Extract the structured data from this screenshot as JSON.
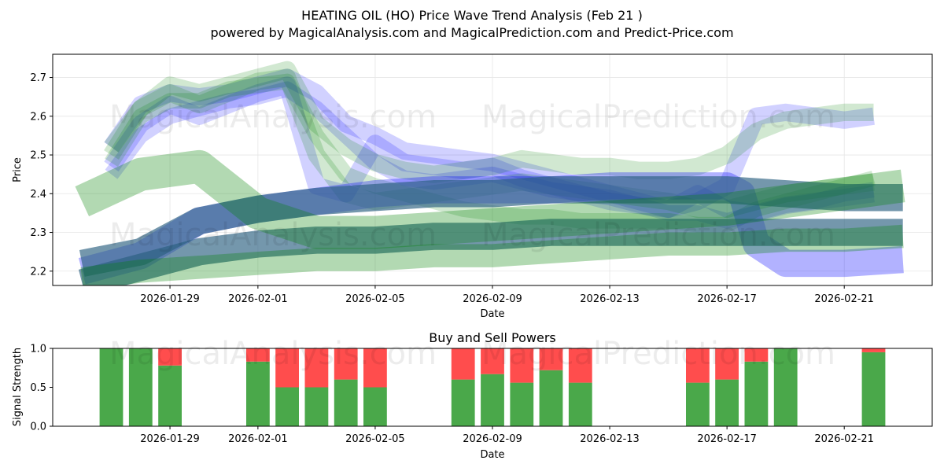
{
  "title_line1": "HEATING OIL (HO) Price Wave Trend Analysis (Feb 21 )",
  "title_line2": "powered by MagicalAnalysis.com and MagicalPrediction.com and Predict-Price.com",
  "watermarks": [
    "MagicalAnalysis.com",
    "MagicalPrediction.com"
  ],
  "chart_data": [
    {
      "type": "line",
      "title": "",
      "xlabel": "Date",
      "ylabel": "Price",
      "x_tick_labels": [
        "2026-01-29",
        "2026-02-01",
        "2026-02-05",
        "2026-02-09",
        "2026-02-13",
        "2026-02-17",
        "2026-02-21"
      ],
      "x_tick_days": [
        3,
        6,
        10,
        14,
        18,
        22,
        26
      ],
      "x_range_days": [
        -1.0,
        29.0
      ],
      "y_ticks": [
        "2.2",
        "2.3",
        "2.4",
        "2.5",
        "2.6",
        "2.7"
      ],
      "ylim": [
        2.163,
        2.76
      ],
      "grid": true,
      "x_dates_note": "day index 0 = 2026-01-26",
      "series": [
        {
          "name": "blue-wave-1",
          "color": "#0000ff",
          "width": 0.045,
          "opacity": 0.18,
          "x": [
            1,
            2,
            3,
            4,
            5,
            6,
            7,
            8,
            9,
            10,
            11,
            12,
            13,
            14,
            15,
            16,
            17,
            18,
            19,
            20,
            21,
            22,
            23,
            24,
            25,
            26,
            27
          ],
          "y": [
            2.52,
            2.63,
            2.66,
            2.65,
            2.66,
            2.68,
            2.7,
            2.66,
            2.58,
            2.55,
            2.51,
            2.5,
            2.49,
            2.48,
            2.46,
            2.44,
            2.42,
            2.4,
            2.38,
            2.36,
            2.38,
            2.42,
            2.6,
            2.61,
            2.6,
            2.59,
            2.6
          ]
        },
        {
          "name": "blue-wave-2",
          "color": "#0000ff",
          "width": 0.045,
          "opacity": 0.18,
          "x": [
            1,
            2,
            3,
            4,
            5,
            6,
            7,
            8,
            9,
            10,
            11,
            12,
            13,
            14,
            15,
            16,
            17,
            18,
            19,
            20,
            21,
            22,
            23,
            24,
            25,
            26,
            27
          ],
          "y": [
            2.47,
            2.58,
            2.63,
            2.6,
            2.63,
            2.66,
            2.68,
            2.42,
            2.4,
            2.53,
            2.48,
            2.47,
            2.46,
            2.47,
            2.44,
            2.42,
            2.4,
            2.38,
            2.37,
            2.36,
            2.4,
            2.36,
            2.35,
            2.37,
            2.38,
            2.39,
            2.4
          ]
        },
        {
          "name": "blue-wave-3",
          "color": "#0000ff",
          "width": 0.04,
          "opacity": 0.18,
          "x": [
            1,
            2,
            3,
            4,
            5,
            6,
            7,
            8,
            9,
            10,
            11,
            12,
            13,
            14,
            15,
            16,
            17,
            18,
            19,
            20,
            21,
            22,
            23,
            24,
            25,
            26,
            27
          ],
          "y": [
            2.45,
            2.55,
            2.6,
            2.62,
            2.64,
            2.65,
            2.67,
            2.62,
            2.55,
            2.48,
            2.44,
            2.43,
            2.44,
            2.45,
            2.43,
            2.41,
            2.4,
            2.39,
            2.37,
            2.35,
            2.35,
            2.33,
            2.35,
            2.37,
            2.38,
            2.4,
            2.41
          ]
        },
        {
          "name": "green-wave-1",
          "color": "#008000",
          "width": 0.045,
          "opacity": 0.18,
          "x": [
            1,
            2,
            3,
            4,
            5,
            6,
            7,
            8,
            9,
            10,
            11,
            12,
            13,
            14,
            15,
            16,
            17,
            18,
            19,
            20,
            21,
            22,
            23,
            24,
            25,
            26,
            27
          ],
          "y": [
            2.52,
            2.62,
            2.68,
            2.66,
            2.68,
            2.7,
            2.72,
            2.58,
            2.52,
            2.48,
            2.46,
            2.45,
            2.46,
            2.47,
            2.49,
            2.48,
            2.47,
            2.47,
            2.46,
            2.46,
            2.47,
            2.5,
            2.56,
            2.59,
            2.6,
            2.61,
            2.61
          ]
        },
        {
          "name": "green-wave-2",
          "color": "#008000",
          "width": 0.045,
          "opacity": 0.18,
          "x": [
            1,
            2,
            3,
            4,
            5,
            6,
            7,
            8,
            9,
            10,
            11,
            12,
            13,
            14,
            15,
            16,
            17,
            18,
            19,
            20,
            21,
            22,
            23,
            24,
            25,
            26,
            27
          ],
          "y": [
            2.5,
            2.62,
            2.66,
            2.63,
            2.66,
            2.69,
            2.7,
            2.5,
            2.4,
            2.38,
            2.39,
            2.4,
            2.41,
            2.42,
            2.43,
            2.42,
            2.41,
            2.4,
            2.39,
            2.38,
            2.36,
            2.36,
            2.38,
            2.4,
            2.41,
            2.42,
            2.43
          ]
        },
        {
          "name": "green-wave-3",
          "color": "#008000",
          "width": 0.04,
          "opacity": 0.18,
          "x": [
            1,
            2,
            3,
            4,
            5,
            6,
            7,
            8,
            9,
            10,
            11,
            12,
            13,
            14,
            15,
            16,
            17,
            18,
            19,
            20,
            21,
            22,
            23,
            24,
            25,
            26,
            27
          ],
          "y": [
            2.48,
            2.6,
            2.64,
            2.64,
            2.67,
            2.68,
            2.69,
            2.55,
            2.45,
            2.42,
            2.4,
            2.38,
            2.36,
            2.35,
            2.34,
            2.34,
            2.33,
            2.33,
            2.33,
            2.33,
            2.32,
            2.32,
            2.36,
            2.38,
            2.4,
            2.42,
            2.44
          ]
        },
        {
          "name": "blue-trend-lower",
          "color": "#0000ff",
          "width": 0.07,
          "opacity": 0.3,
          "x": [
            0,
            2,
            4,
            6,
            8,
            10,
            12,
            14,
            16,
            18,
            20,
            22,
            22.5,
            23,
            24,
            26,
            28
          ],
          "y": [
            2.2,
            2.24,
            2.33,
            2.36,
            2.38,
            2.4,
            2.41,
            2.41,
            2.41,
            2.42,
            2.42,
            2.42,
            2.4,
            2.27,
            2.22,
            2.22,
            2.23
          ]
        },
        {
          "name": "teal-trend-upper",
          "color": "#2a6080",
          "width": 0.07,
          "opacity": 0.65,
          "x": [
            0,
            2,
            4,
            6,
            8,
            10,
            12,
            14,
            16,
            18,
            20,
            22,
            24,
            26,
            28
          ],
          "y": [
            2.22,
            2.25,
            2.33,
            2.36,
            2.38,
            2.39,
            2.4,
            2.4,
            2.41,
            2.41,
            2.41,
            2.41,
            2.4,
            2.39,
            2.39
          ]
        },
        {
          "name": "teal-trend-lower",
          "color": "#2a6080",
          "width": 0.07,
          "opacity": 0.65,
          "x": [
            0,
            2,
            4,
            6,
            8,
            10,
            12,
            14,
            16,
            18,
            20,
            22,
            24,
            26,
            28
          ],
          "y": [
            2.17,
            2.21,
            2.25,
            2.27,
            2.28,
            2.28,
            2.29,
            2.29,
            2.3,
            2.3,
            2.3,
            2.3,
            2.3,
            2.3,
            2.3
          ]
        },
        {
          "name": "green-trend-descending",
          "color": "#008000",
          "width": 0.085,
          "opacity": 0.3,
          "x": [
            0,
            2,
            4,
            6,
            8,
            10,
            12,
            14,
            16,
            18,
            20,
            22,
            24,
            26,
            28
          ],
          "y": [
            2.38,
            2.45,
            2.47,
            2.35,
            2.3,
            2.3,
            2.31,
            2.32,
            2.33,
            2.34,
            2.35,
            2.36,
            2.38,
            2.4,
            2.42
          ]
        },
        {
          "name": "green-trend-low",
          "color": "#008000",
          "width": 0.06,
          "opacity": 0.3,
          "x": [
            0,
            2,
            4,
            6,
            8,
            10,
            12,
            14,
            16,
            18,
            20,
            22,
            24,
            26,
            28
          ],
          "y": [
            2.18,
            2.2,
            2.21,
            2.22,
            2.23,
            2.23,
            2.24,
            2.24,
            2.25,
            2.26,
            2.27,
            2.27,
            2.28,
            2.28,
            2.29
          ]
        }
      ]
    },
    {
      "type": "bar",
      "title": "Buy and Sell Powers",
      "xlabel": "Date",
      "ylabel": "Signal Strength",
      "ylim": [
        0,
        1
      ],
      "y_ticks": [
        "0.0",
        "0.5",
        "1.0"
      ],
      "x_tick_labels": [
        "2026-01-29",
        "2026-02-01",
        "2026-02-05",
        "2026-02-09",
        "2026-02-13",
        "2026-02-17",
        "2026-02-21"
      ],
      "x_tick_days": [
        3,
        6,
        10,
        14,
        18,
        22,
        26
      ],
      "x_range_days": [
        -1.0,
        29.0
      ],
      "categories_days": [
        1,
        2,
        3,
        6,
        7,
        8,
        9,
        10,
        13,
        14,
        15,
        16,
        17,
        21,
        22,
        23,
        24,
        27
      ],
      "series": [
        {
          "name": "Buy",
          "color": "#4aa84a",
          "values": [
            1.0,
            1.0,
            0.78,
            0.83,
            0.5,
            0.5,
            0.6,
            0.5,
            0.6,
            0.67,
            0.56,
            0.72,
            0.56,
            0.56,
            0.6,
            0.83,
            1.0,
            0.95
          ]
        },
        {
          "name": "Sell",
          "color": "#ff4d4d",
          "values": [
            0.0,
            0.0,
            0.22,
            0.17,
            0.5,
            0.5,
            0.4,
            0.5,
            0.4,
            0.33,
            0.44,
            0.28,
            0.44,
            0.44,
            0.4,
            0.17,
            0.0,
            0.05
          ]
        }
      ]
    }
  ]
}
